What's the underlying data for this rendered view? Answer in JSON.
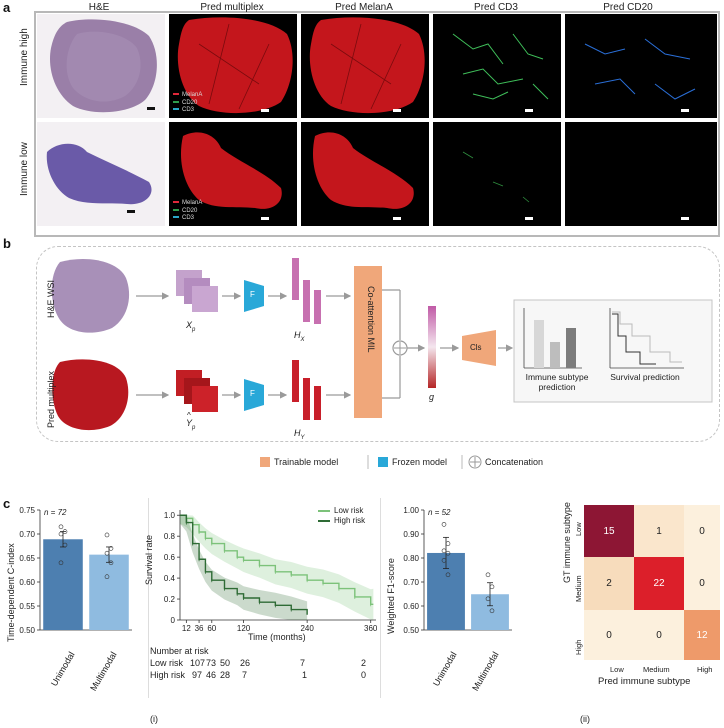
{
  "panel_a": {
    "label": "a",
    "columns": [
      "H&E",
      "Pred multiplex",
      "Pred MelanA",
      "Pred CD3",
      "Pred CD20"
    ],
    "rows": [
      "Immune high",
      "Immune low"
    ],
    "legend": [
      {
        "name": "MelanA",
        "color": "#e0283a"
      },
      {
        "name": "CD20",
        "color": "#2e9c4c"
      },
      {
        "name": "CD3",
        "color": "#2aa7c8"
      }
    ]
  },
  "panel_b": {
    "label": "b",
    "row1_label": "H&E WSI",
    "row2_label": "Pred multiplex",
    "x_label": "X",
    "x_sub": "p",
    "y_label": "Y",
    "y_hat": "^",
    "y_sub": "p",
    "f_label": "F",
    "hx_label": "H",
    "hx_sub": "X",
    "hy_label": "H",
    "hy_sub": "Y",
    "mil_label": "Co-attention MIL",
    "g_label": "g",
    "cls_label": "Cls",
    "out1": "Immune subtype prediction",
    "out2": "Survival prediction",
    "legend": [
      "Trainable model",
      "Frozen model",
      "Concatenation"
    ],
    "colors": {
      "trainable": "#f0a77a",
      "frozen": "#29a8d8"
    }
  },
  "panel_c": {
    "label": "c",
    "sub_i": "(i)",
    "sub_ii": "(ii)",
    "cindex": {
      "ylabel": "Time-dependent C-index",
      "n_label": "n = 72",
      "ylim": [
        0.5,
        0.75
      ],
      "yticks": [
        "0.50",
        "0.55",
        "0.60",
        "0.65",
        "0.70",
        "0.75"
      ],
      "categories": [
        "Unimodal",
        "Multimodal"
      ]
    },
    "km": {
      "ylabel": "Survival rate",
      "xlabel": "Time (months)",
      "yticks": [
        "0",
        "0.2",
        "0.4",
        "0.6",
        "0.8",
        "1.0"
      ],
      "xticks": [
        "12",
        "36",
        "60",
        "120",
        "240",
        "360"
      ],
      "legend": [
        "Low risk",
        "High risk"
      ],
      "risk_title": "Number at risk",
      "risk_rows": [
        {
          "label": "Low risk",
          "values": [
            "107",
            "73",
            "50",
            "26",
            "7",
            "2"
          ]
        },
        {
          "label": "High risk",
          "values": [
            "97",
            "46",
            "28",
            "7",
            "1",
            "0"
          ]
        }
      ]
    },
    "f1": {
      "ylabel": "Weighted F1-score",
      "n_label": "n = 52",
      "yticks": [
        "0.50",
        "0.60",
        "0.70",
        "0.80",
        "0.90",
        "1.00"
      ],
      "categories": [
        "Unimodal",
        "Multimodal"
      ]
    },
    "confusion": {
      "ylabel": "GT immune subtype",
      "xlabel": "Pred immune subtype",
      "labels": [
        "Low",
        "Medium",
        "High"
      ],
      "matrix": [
        [
          "15",
          "1",
          "0"
        ],
        [
          "2",
          "22",
          "0"
        ],
        [
          "0",
          "0",
          "12"
        ]
      ]
    }
  },
  "chart_data": [
    {
      "type": "bar",
      "categories": [
        "Unimodal",
        "Multimodal"
      ],
      "values": [
        0.689,
        0.657
      ],
      "errors": [
        0.016,
        0.016
      ],
      "points": [
        [
          0.715,
          0.705,
          0.7,
          0.677,
          0.64
        ],
        [
          0.698,
          0.67,
          0.66,
          0.64,
          0.611
        ]
      ],
      "ylabel": "Time-dependent C-index",
      "ylim": [
        0.5,
        0.75
      ],
      "colors": [
        "#4d7fb0",
        "#8fbbe0"
      ]
    },
    {
      "type": "line",
      "xlabel": "Time (months)",
      "ylabel": "Survival rate",
      "xlim": [
        0,
        370
      ],
      "ylim": [
        0,
        1.05
      ],
      "series": [
        {
          "name": "Low risk",
          "color": "#7cc27a",
          "x": [
            0,
            12,
            24,
            36,
            48,
            60,
            84,
            108,
            120,
            150,
            180,
            210,
            240,
            270,
            300,
            330,
            360,
            365
          ],
          "y": [
            1.0,
            0.97,
            0.91,
            0.84,
            0.78,
            0.73,
            0.66,
            0.6,
            0.57,
            0.52,
            0.46,
            0.43,
            0.38,
            0.35,
            0.3,
            0.22,
            0.15,
            0.15
          ]
        },
        {
          "name": "High risk",
          "color": "#2e6b35",
          "x": [
            0,
            12,
            24,
            36,
            48,
            60,
            84,
            108,
            120,
            150,
            180,
            210,
            240
          ],
          "y": [
            1.0,
            0.93,
            0.73,
            0.58,
            0.46,
            0.38,
            0.3,
            0.25,
            0.21,
            0.17,
            0.14,
            0.1,
            0.05
          ]
        }
      ]
    },
    {
      "type": "bar",
      "categories": [
        "Unimodal",
        "Multimodal"
      ],
      "values": [
        0.821,
        0.649
      ],
      "errors": [
        0.065,
        0.048
      ],
      "points": [
        [
          0.94,
          0.86,
          0.83,
          0.82,
          0.79,
          0.73
        ],
        [
          0.73,
          0.68,
          0.63,
          0.58
        ]
      ],
      "ylabel": "Weighted F1-score",
      "ylim": [
        0.5,
        1.0
      ],
      "colors": [
        "#4d7fb0",
        "#8fbbe0"
      ]
    },
    {
      "type": "heatmap",
      "xlabel": "Pred immune subtype",
      "ylabel": "GT immune subtype",
      "categories": [
        "Low",
        "Medium",
        "High"
      ],
      "values": [
        [
          15,
          1,
          0
        ],
        [
          2,
          22,
          0
        ],
        [
          0,
          0,
          12
        ]
      ]
    }
  ]
}
